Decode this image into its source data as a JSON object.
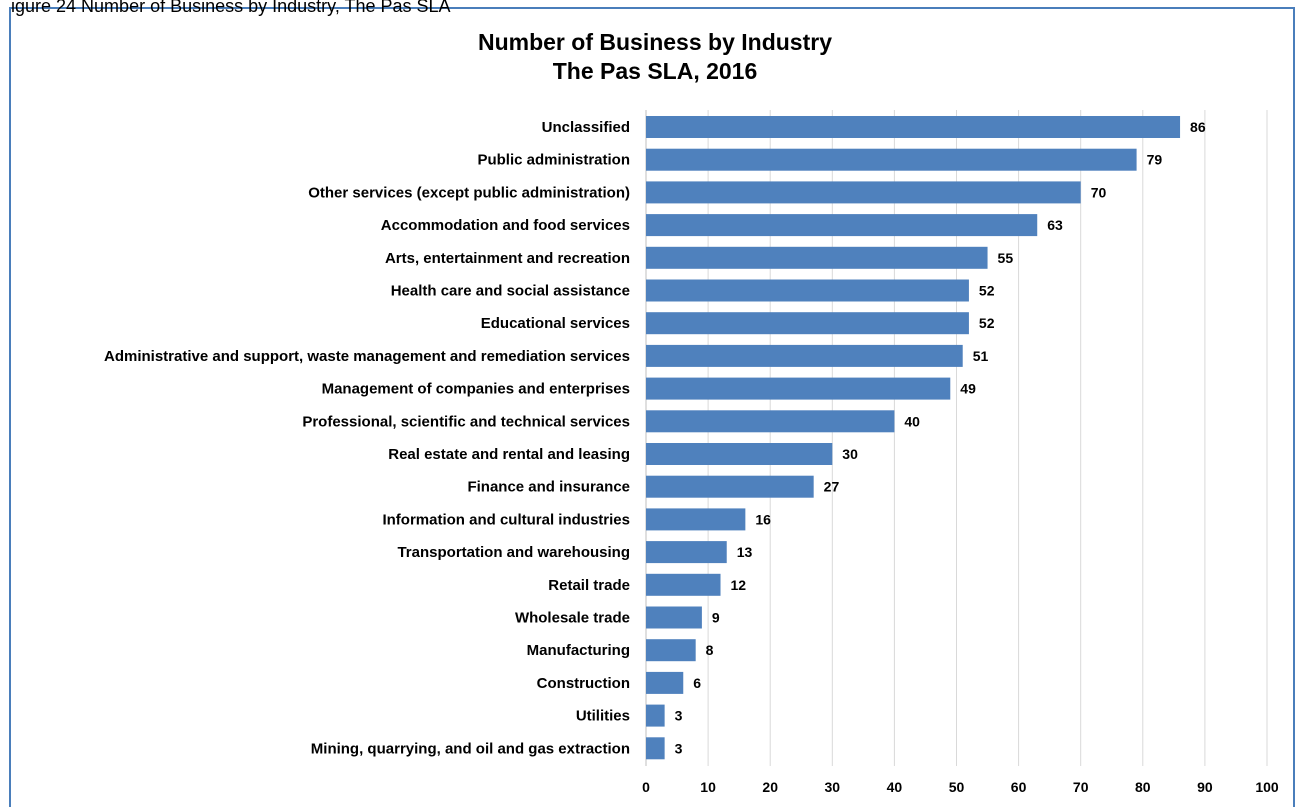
{
  "page_caption": "igure 24 Number of Business by Industry, The Pas SLA",
  "chart_data": {
    "type": "bar",
    "orientation": "horizontal",
    "title": [
      "Number of Business by Industry",
      "The Pas SLA, 2016"
    ],
    "categories": [
      "Unclassified",
      "Public administration",
      "Other services (except public administration)",
      "Accommodation and food services",
      "Arts, entertainment and recreation",
      "Health care and social assistance",
      "Educational services",
      "Administrative and support, waste management and remediation services",
      "Management of companies and enterprises",
      "Professional, scientific and technical services",
      "Real estate and rental and leasing",
      "Finance and insurance",
      "Information and cultural industries",
      "Transportation and warehousing",
      "Retail trade",
      "Wholesale trade",
      "Manufacturing",
      "Construction",
      "Utilities",
      "Mining, quarrying, and oil and gas extraction"
    ],
    "values": [
      86,
      79,
      70,
      63,
      55,
      52,
      52,
      51,
      49,
      40,
      30,
      27,
      16,
      13,
      12,
      9,
      8,
      6,
      3,
      3
    ],
    "xlim": [
      0,
      100
    ],
    "xticks": [
      0,
      10,
      20,
      30,
      40,
      50,
      60,
      70,
      80,
      90,
      100
    ],
    "grid": "vertical",
    "bar_color": "#4f81bd",
    "grid_color": "#d9d9d9",
    "data_labels": true,
    "legend": "none"
  }
}
